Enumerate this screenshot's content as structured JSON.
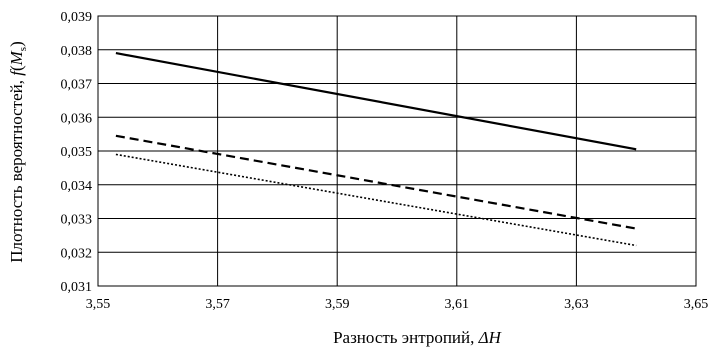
{
  "chart_data": {
    "type": "line",
    "title": "",
    "xlabel": {
      "text": "Разность энтропий, ",
      "symbol": "ΔH"
    },
    "ylabel": {
      "text": "Плотность вероятностей, ",
      "func": "f",
      "open": "(",
      "var": "M",
      "sub": "s",
      "close": ")"
    },
    "xlim": [
      3.55,
      3.65
    ],
    "ylim": [
      0.031,
      0.039
    ],
    "x_ticks": [
      "3,55",
      "3,57",
      "3,59",
      "3,61",
      "3,63",
      "3,65"
    ],
    "y_ticks": [
      "0,031",
      "0,032",
      "0,033",
      "0,034",
      "0,035",
      "0,036",
      "0,037",
      "0,038",
      "0,039"
    ],
    "x_tick_values": [
      3.55,
      3.57,
      3.59,
      3.61,
      3.63,
      3.65
    ],
    "y_tick_values": [
      0.031,
      0.032,
      0.033,
      0.034,
      0.035,
      0.036,
      0.037,
      0.038,
      0.039
    ],
    "grid": true,
    "legend": "none",
    "series": [
      {
        "style": "solid",
        "color": "#000000",
        "x": [
          3.553,
          3.64
        ],
        "y": [
          0.0379,
          0.03505
        ]
      },
      {
        "style": "dashed",
        "color": "#000000",
        "x": [
          3.553,
          3.64
        ],
        "y": [
          0.03545,
          0.0327
        ]
      },
      {
        "style": "dotted",
        "color": "#000000",
        "x": [
          3.553,
          3.64
        ],
        "y": [
          0.0349,
          0.0322
        ]
      }
    ]
  }
}
